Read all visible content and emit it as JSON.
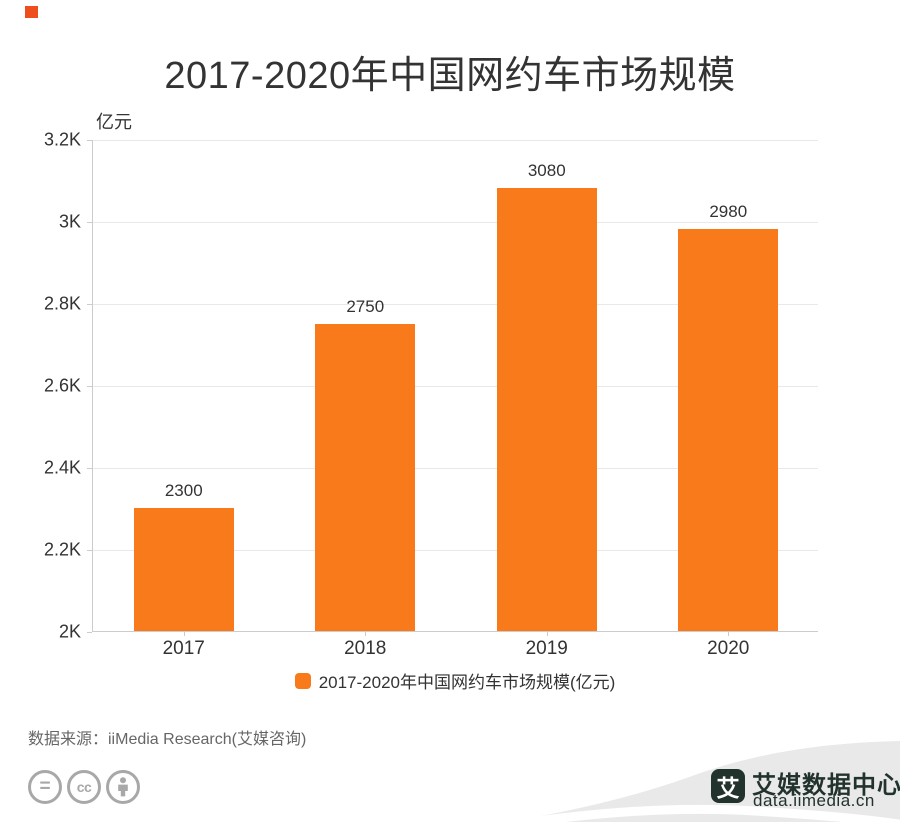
{
  "title": "2017-2020年中国网约车市场规模",
  "corner_marker": {
    "color": "#ee4e1e"
  },
  "chart_data": {
    "type": "bar",
    "title": "2017-2020年中国网约车市场规模",
    "unit_label": "亿元",
    "categories": [
      "2017",
      "2018",
      "2019",
      "2020"
    ],
    "values": [
      2300,
      2750,
      3080,
      2980
    ],
    "value_labels": [
      "2300",
      "2750",
      "3080",
      "2980"
    ],
    "ylim": [
      2000,
      3200
    ],
    "ytick_step": 200,
    "ytick_labels": [
      "3.2K",
      "3K",
      "2.8K",
      "2.6K",
      "2.4K",
      "2.2K",
      "2K"
    ],
    "grid": true,
    "bar_color": "#f97a1a",
    "axis_color": "#cccccc",
    "grid_color": "#e9e9e9",
    "legend": {
      "label": "2017-2020年中国网约车市场规模(亿元)",
      "swatch_color": "#f97a1a",
      "position": "bottom-center"
    }
  },
  "footer": {
    "source": "数据来源：iiMedia Research(艾媒咨询)",
    "license_icons": [
      {
        "name": "equals-icon",
        "glyph": "="
      },
      {
        "name": "cc-icon",
        "glyph": "cc"
      },
      {
        "name": "person-icon",
        "glyph": "person"
      }
    ],
    "brand": {
      "logo_glyph": "艾",
      "name": "艾媒数据中心",
      "domain": "data.iimedia.cn",
      "color": "#22332e",
      "wave_color": "#e9e9e9"
    }
  }
}
